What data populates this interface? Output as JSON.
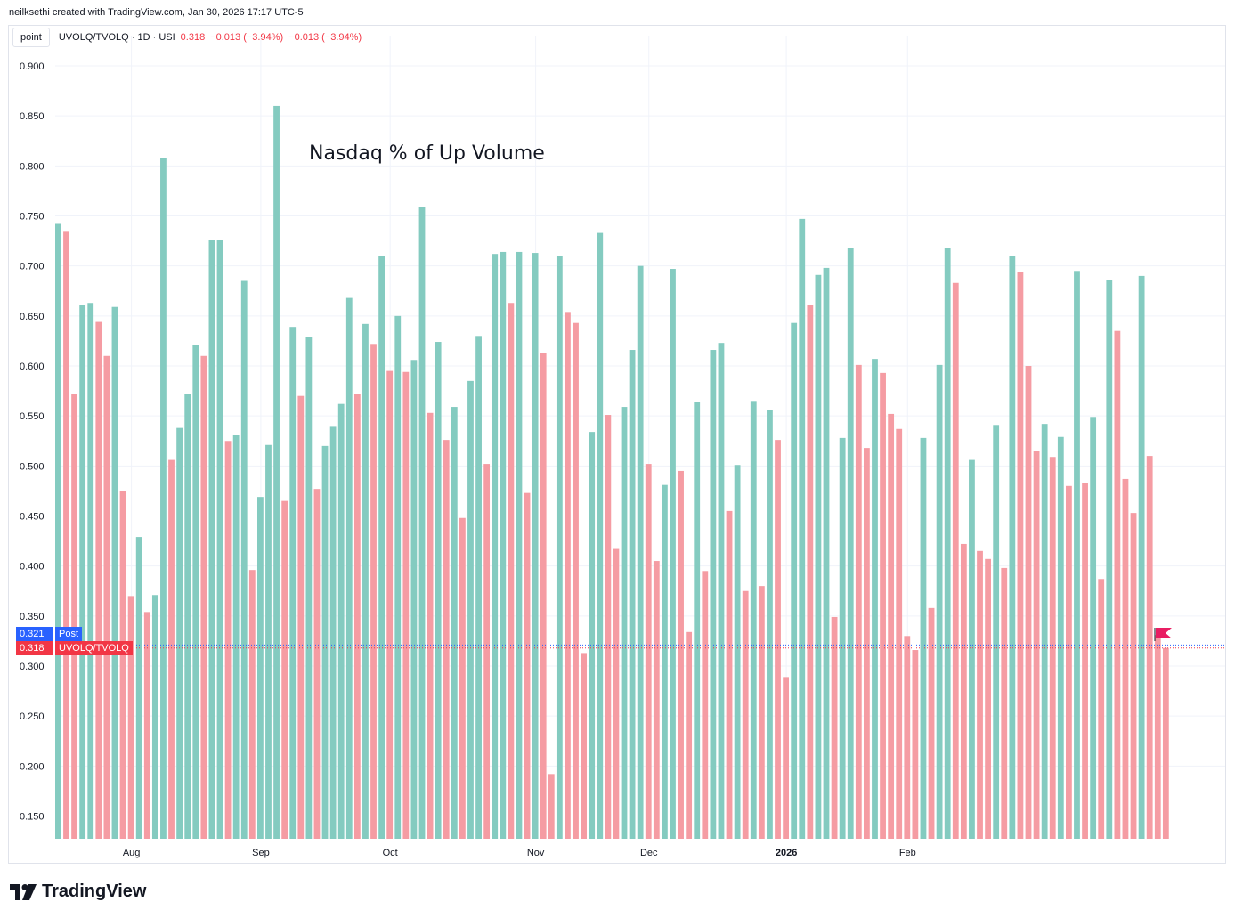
{
  "attribution": "neilksethi created with TradingView.com, Jan 30, 2026 17:17 UTC-5",
  "legend": {
    "mode_button": "point",
    "symbol": "UVOLQ/TVOLQ · 1D · USI",
    "last": "0.318",
    "change": "−0.013 (−3.94%)",
    "post_change": "−0.013 (−3.94%)"
  },
  "price_tags": {
    "post_value": "0.321",
    "post_label": "Post",
    "last_value": "0.318",
    "last_label": "UVOLQ/TVOLQ"
  },
  "logo_text": "TradingView",
  "colors": {
    "up": "#84cbc0",
    "down": "#f59ca3",
    "post": "#2962ff",
    "last": "#f23645",
    "flag": "#e91e63"
  },
  "chart_data": {
    "type": "bar",
    "title": "Nasdaq % of Up Volume",
    "ylim": [
      0.125,
      0.92
    ],
    "y_ticks": [
      "0.900",
      "0.850",
      "0.800",
      "0.750",
      "0.700",
      "0.650",
      "0.600",
      "0.550",
      "0.500",
      "0.450",
      "0.400",
      "0.350",
      "0.300",
      "0.250",
      "0.200",
      "0.150"
    ],
    "x_ticks": [
      {
        "label": "Aug",
        "index": 9,
        "bold": false
      },
      {
        "label": "Sep",
        "index": 25,
        "bold": false
      },
      {
        "label": "Oct",
        "index": 41,
        "bold": false
      },
      {
        "label": "Nov",
        "index": 59,
        "bold": false
      },
      {
        "label": "Dec",
        "index": 73,
        "bold": false
      },
      {
        "label": "2026",
        "index": 90,
        "bold": true
      },
      {
        "label": "Feb",
        "index": 105,
        "bold": false
      }
    ],
    "series": [
      {
        "name": "UVOLQ/TVOLQ",
        "values": [
          0.742,
          0.735,
          0.572,
          0.661,
          0.663,
          0.644,
          0.61,
          0.659,
          0.475,
          0.37,
          0.429,
          0.354,
          0.371,
          0.808,
          0.506,
          0.538,
          0.572,
          0.621,
          0.61,
          0.726,
          0.726,
          0.525,
          0.531,
          0.685,
          0.396,
          0.469,
          0.521,
          0.86,
          0.465,
          0.639,
          0.57,
          0.629,
          0.477,
          0.52,
          0.54,
          0.562,
          0.668,
          0.572,
          0.642,
          0.622,
          0.71,
          0.595,
          0.65,
          0.594,
          0.606,
          0.759,
          0.553,
          0.624,
          0.526,
          0.559,
          0.448,
          0.585,
          0.63,
          0.502,
          0.712,
          0.714,
          0.663,
          0.714,
          0.473,
          0.713,
          0.613,
          0.192,
          0.71,
          0.654,
          0.643,
          0.313,
          0.534,
          0.733,
          0.551,
          0.417,
          0.559,
          0.616,
          0.7,
          0.502,
          0.405,
          0.481,
          0.697,
          0.495,
          0.334,
          0.564,
          0.395,
          0.616,
          0.623,
          0.455,
          0.501,
          0.375,
          0.565,
          0.38,
          0.556,
          0.526,
          0.289,
          0.643,
          0.747,
          0.661,
          0.691,
          0.698,
          0.349,
          0.528,
          0.718,
          0.601,
          0.518,
          0.607,
          0.593,
          0.552,
          0.537,
          0.33,
          0.316,
          0.528,
          0.358,
          0.601,
          0.718,
          0.683,
          0.422,
          0.506,
          0.415,
          0.407,
          0.541,
          0.398,
          0.71,
          0.694,
          0.6,
          0.515,
          0.542,
          0.509,
          0.529,
          0.48,
          0.695,
          0.483,
          0.549,
          0.387,
          0.686,
          0.635,
          0.487,
          0.453,
          0.69,
          0.51,
          0.331,
          0.318
        ],
        "directions": [
          "up",
          "down",
          "down",
          "up",
          "up",
          "down",
          "down",
          "up",
          "down",
          "down",
          "up",
          "down",
          "up",
          "up",
          "down",
          "up",
          "up",
          "up",
          "down",
          "up",
          "up",
          "down",
          "up",
          "up",
          "down",
          "up",
          "up",
          "up",
          "down",
          "up",
          "down",
          "up",
          "down",
          "up",
          "up",
          "up",
          "up",
          "down",
          "up",
          "down",
          "up",
          "down",
          "up",
          "down",
          "up",
          "up",
          "down",
          "up",
          "down",
          "up",
          "down",
          "up",
          "up",
          "down",
          "up",
          "up",
          "down",
          "up",
          "down",
          "up",
          "down",
          "down",
          "up",
          "down",
          "down",
          "down",
          "up",
          "up",
          "down",
          "down",
          "up",
          "up",
          "up",
          "down",
          "down",
          "up",
          "up",
          "down",
          "down",
          "up",
          "down",
          "up",
          "up",
          "down",
          "up",
          "down",
          "up",
          "down",
          "up",
          "down",
          "down",
          "up",
          "up",
          "down",
          "up",
          "up",
          "down",
          "up",
          "up",
          "down",
          "down",
          "up",
          "down",
          "down",
          "down",
          "down",
          "down",
          "up",
          "down",
          "up",
          "up",
          "down",
          "down",
          "up",
          "down",
          "down",
          "up",
          "down",
          "up",
          "down",
          "down",
          "down",
          "up",
          "down",
          "up",
          "down",
          "up",
          "down",
          "up",
          "down",
          "up",
          "down",
          "down",
          "down",
          "up",
          "down",
          "down",
          "down"
        ]
      }
    ]
  }
}
